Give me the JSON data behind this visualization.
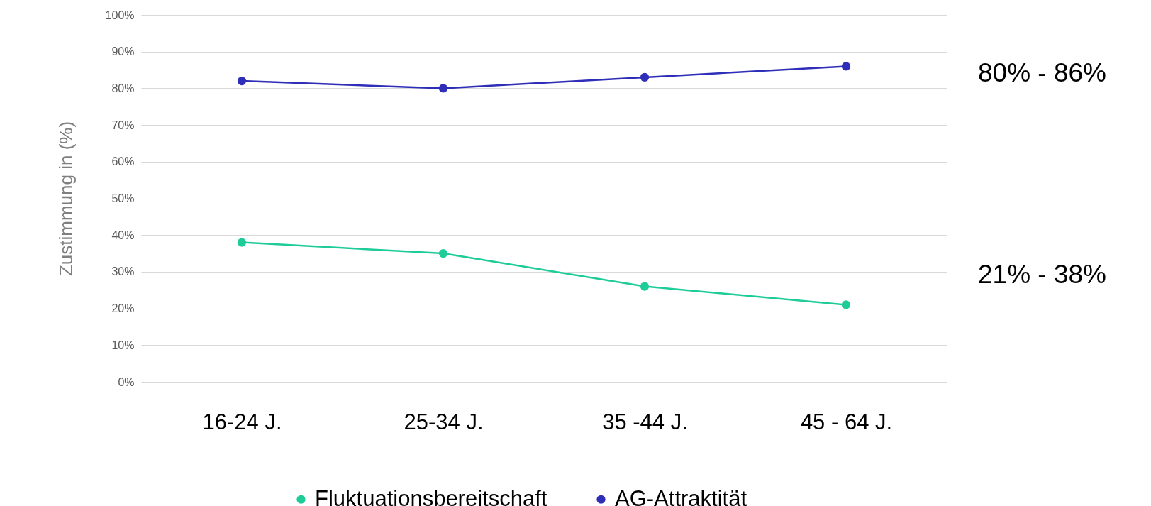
{
  "chart_data": {
    "type": "line",
    "ylabel": "Zustimmung in  (%)",
    "categories": [
      "16-24 J.",
      "25-34 J.",
      "35 -44 J.",
      "45 - 64 J."
    ],
    "series": [
      {
        "name": "Fluktuationsbereitschaft",
        "color": "#1dcc98",
        "values": [
          38,
          35,
          26,
          21
        ]
      },
      {
        "name": "AG-Attraktität",
        "color": "#2e2eb8",
        "values": [
          82,
          80,
          83,
          86
        ]
      }
    ],
    "ylim": [
      0,
      100
    ],
    "yticks": [
      {
        "value": 0,
        "label": "0%"
      },
      {
        "value": 10,
        "label": "10%"
      },
      {
        "value": 20,
        "label": "20%"
      },
      {
        "value": 30,
        "label": "30%"
      },
      {
        "value": 40,
        "label": "40%"
      },
      {
        "value": 50,
        "label": "50%"
      },
      {
        "value": 60,
        "label": "60%"
      },
      {
        "value": 70,
        "label": "70%"
      },
      {
        "value": 80,
        "label": "80%"
      },
      {
        "value": 90,
        "label": "90%"
      },
      {
        "value": 100,
        "label": "100%"
      }
    ],
    "grid": "y",
    "legend": "bottom",
    "marker": "circle",
    "annotations": [
      "80% - 86%",
      "21% - 38%"
    ]
  }
}
